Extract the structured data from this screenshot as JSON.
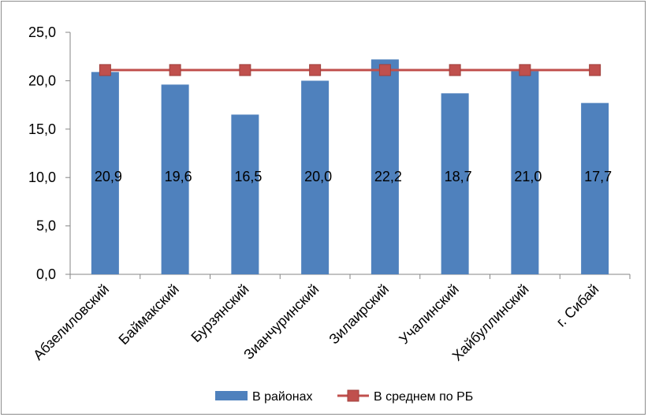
{
  "chart_data": {
    "type": "bar",
    "categories": [
      "Абзелиловский",
      "Баймакский",
      "Бурзянский",
      "Зианчуринский",
      "Зилаирский",
      "Учалинский",
      "Хайбуллинский",
      "г. Сибай"
    ],
    "series": [
      {
        "name": "В районах",
        "type": "bar",
        "color": "#4f81bd",
        "values": [
          20.9,
          19.6,
          16.5,
          20.0,
          22.2,
          18.7,
          21.0,
          17.7
        ],
        "labels": [
          "20,9",
          "19,6",
          "16,5",
          "20,0",
          "22,2",
          "18,7",
          "21,0",
          "17,7"
        ]
      },
      {
        "name": "В среднем по РБ",
        "type": "line",
        "marker": "square",
        "color": "#c0504d",
        "values": [
          21.1,
          21.1,
          21.1,
          21.1,
          21.1,
          21.1,
          21.1,
          21.1
        ]
      }
    ],
    "yticks": [
      "0,0",
      "5,0",
      "10,0",
      "15,0",
      "20,0",
      "25,0"
    ],
    "ylim": [
      0,
      25
    ],
    "grid": false,
    "legend": "bottom"
  }
}
